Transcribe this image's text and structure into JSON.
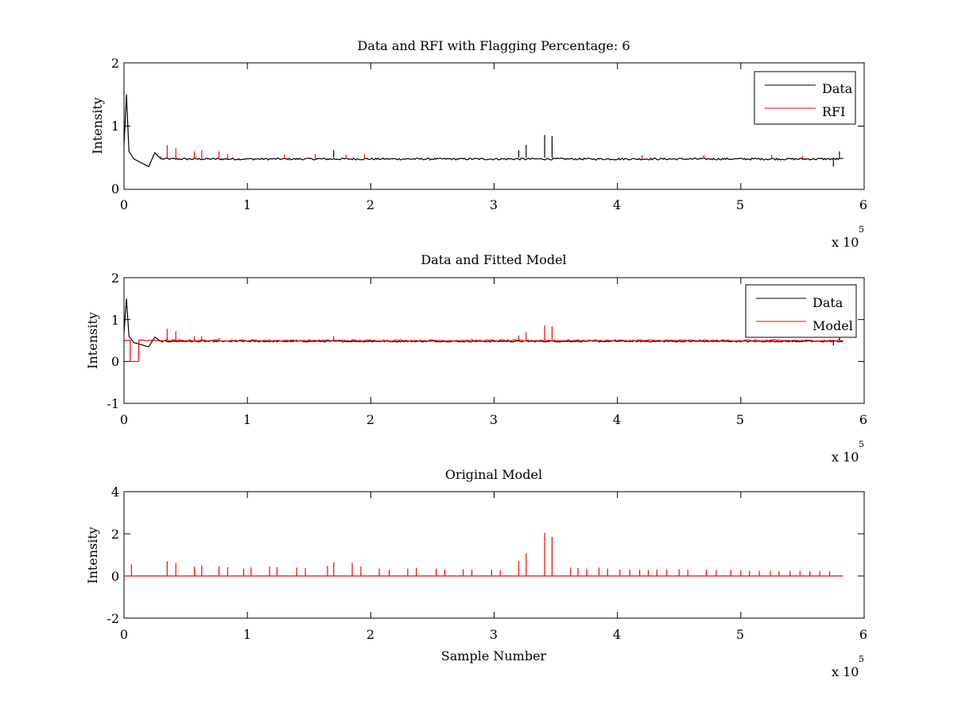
{
  "colors": {
    "data": "#000000",
    "rfi": "#ff0000",
    "model": "#ff0000"
  },
  "chart_data": [
    {
      "type": "line",
      "title": "Data and RFI with Flagging Percentage: 6",
      "xlabel": "",
      "ylabel": "Intensity",
      "xlim": [
        0,
        600000
      ],
      "ylim": [
        0,
        2
      ],
      "xticks": [
        0,
        1,
        2,
        3,
        4,
        5,
        6
      ],
      "yticks": [
        0,
        1,
        2
      ],
      "x_exponent": "x 10",
      "x_exponent_power": "5",
      "legend": [
        "Data",
        "RFI"
      ],
      "legend_position": "top-right",
      "series": [
        {
          "name": "Data",
          "color": "#000000",
          "baseline": 0.5,
          "features": [
            [
              0,
              0.7
            ],
            [
              2000,
              1.5
            ],
            [
              4000,
              0.6
            ],
            [
              8000,
              0.48
            ],
            [
              20000,
              0.36
            ],
            [
              25000,
              0.58
            ],
            [
              30000,
              0.48
            ]
          ],
          "spikes": [
            [
              170000,
              0.62
            ],
            [
              320000,
              0.62
            ],
            [
              326000,
              0.7
            ],
            [
              341000,
              0.86
            ],
            [
              347000,
              0.84
            ],
            [
              575000,
              0.36
            ],
            [
              580000,
              0.6
            ]
          ]
        },
        {
          "name": "RFI",
          "color": "#ff0000",
          "spikes": [
            [
              30000,
              0.52
            ],
            [
              35000,
              0.7
            ],
            [
              42000,
              0.65
            ],
            [
              57000,
              0.6
            ],
            [
              63000,
              0.62
            ],
            [
              77000,
              0.6
            ],
            [
              84000,
              0.56
            ],
            [
              130000,
              0.55
            ],
            [
              155000,
              0.56
            ],
            [
              180000,
              0.55
            ],
            [
              195000,
              0.56
            ],
            [
              420000,
              0.54
            ],
            [
              470000,
              0.54
            ],
            [
              525000,
              0.54
            ],
            [
              550000,
              0.53
            ]
          ]
        }
      ]
    },
    {
      "type": "line",
      "title": "Data and Fitted Model",
      "xlabel": "",
      "ylabel": "Intensity",
      "xlim": [
        0,
        600000
      ],
      "ylim": [
        -1,
        2
      ],
      "xticks": [
        0,
        1,
        2,
        3,
        4,
        5,
        6
      ],
      "yticks": [
        -1,
        0,
        1,
        2
      ],
      "x_exponent": "x 10",
      "x_exponent_power": "5",
      "legend": [
        "Data",
        "Model"
      ],
      "legend_position": "top-right",
      "series": [
        {
          "name": "Data",
          "color": "#000000",
          "baseline": 0.5,
          "features": [
            [
              0,
              0.7
            ],
            [
              2000,
              1.5
            ],
            [
              4000,
              0.6
            ],
            [
              8000,
              0.45
            ],
            [
              20000,
              0.35
            ],
            [
              25000,
              0.58
            ],
            [
              30000,
              0.48
            ]
          ],
          "spikes": [
            [
              575000,
              0.38
            ],
            [
              580000,
              0.58
            ]
          ]
        },
        {
          "name": "Model",
          "color": "#ff0000",
          "baseline": 0.5,
          "features": [
            [
              5000,
              0.0
            ],
            [
              12000,
              0.0
            ],
            [
              12000,
              0.5
            ]
          ],
          "spikes": [
            [
              35000,
              0.78
            ],
            [
              42000,
              0.72
            ],
            [
              57000,
              0.6
            ],
            [
              63000,
              0.6
            ],
            [
              77000,
              0.56
            ],
            [
              170000,
              0.6
            ],
            [
              320000,
              0.62
            ],
            [
              326000,
              0.7
            ],
            [
              341000,
              0.86
            ],
            [
              347000,
              0.84
            ]
          ]
        }
      ]
    },
    {
      "type": "line",
      "title": "Original Model",
      "xlabel": "Sample Number",
      "ylabel": "Intensity",
      "xlim": [
        0,
        600000
      ],
      "ylim": [
        -2,
        4
      ],
      "xticks": [
        0,
        1,
        2,
        3,
        4,
        5,
        6
      ],
      "yticks": [
        -2,
        0,
        2,
        4
      ],
      "x_exponent": "x 10",
      "x_exponent_power": "5",
      "legend": [],
      "series": [
        {
          "name": "Original Model",
          "color": "#ff0000",
          "baseline": 0.0,
          "spikes": [
            [
              6000,
              0.55
            ],
            [
              35000,
              0.7
            ],
            [
              42000,
              0.6
            ],
            [
              57000,
              0.45
            ],
            [
              63000,
              0.5
            ],
            [
              77000,
              0.45
            ],
            [
              84000,
              0.42
            ],
            [
              97000,
              0.35
            ],
            [
              103000,
              0.4
            ],
            [
              118000,
              0.45
            ],
            [
              124000,
              0.42
            ],
            [
              140000,
              0.4
            ],
            [
              147000,
              0.38
            ],
            [
              165000,
              0.48
            ],
            [
              170000,
              0.65
            ],
            [
              185000,
              0.62
            ],
            [
              192000,
              0.45
            ],
            [
              207000,
              0.35
            ],
            [
              215000,
              0.3
            ],
            [
              230000,
              0.35
            ],
            [
              237000,
              0.38
            ],
            [
              253000,
              0.35
            ],
            [
              260000,
              0.3
            ],
            [
              275000,
              0.32
            ],
            [
              282000,
              0.3
            ],
            [
              298000,
              0.3
            ],
            [
              305000,
              0.28
            ],
            [
              320000,
              0.7
            ],
            [
              326000,
              1.08
            ],
            [
              341000,
              2.05
            ],
            [
              347000,
              1.85
            ],
            [
              362000,
              0.4
            ],
            [
              368000,
              0.38
            ],
            [
              375000,
              0.32
            ],
            [
              385000,
              0.4
            ],
            [
              392000,
              0.35
            ],
            [
              402000,
              0.3
            ],
            [
              410000,
              0.3
            ],
            [
              418000,
              0.3
            ],
            [
              425000,
              0.28
            ],
            [
              432000,
              0.3
            ],
            [
              440000,
              0.3
            ],
            [
              450000,
              0.32
            ],
            [
              457000,
              0.3
            ],
            [
              472000,
              0.3
            ],
            [
              480000,
              0.28
            ],
            [
              492000,
              0.28
            ],
            [
              500000,
              0.26
            ],
            [
              507000,
              0.25
            ],
            [
              515000,
              0.25
            ],
            [
              524000,
              0.25
            ],
            [
              531000,
              0.24
            ],
            [
              540000,
              0.24
            ],
            [
              548000,
              0.24
            ],
            [
              556000,
              0.23
            ],
            [
              564000,
              0.23
            ],
            [
              572000,
              0.22
            ]
          ]
        }
      ]
    }
  ]
}
